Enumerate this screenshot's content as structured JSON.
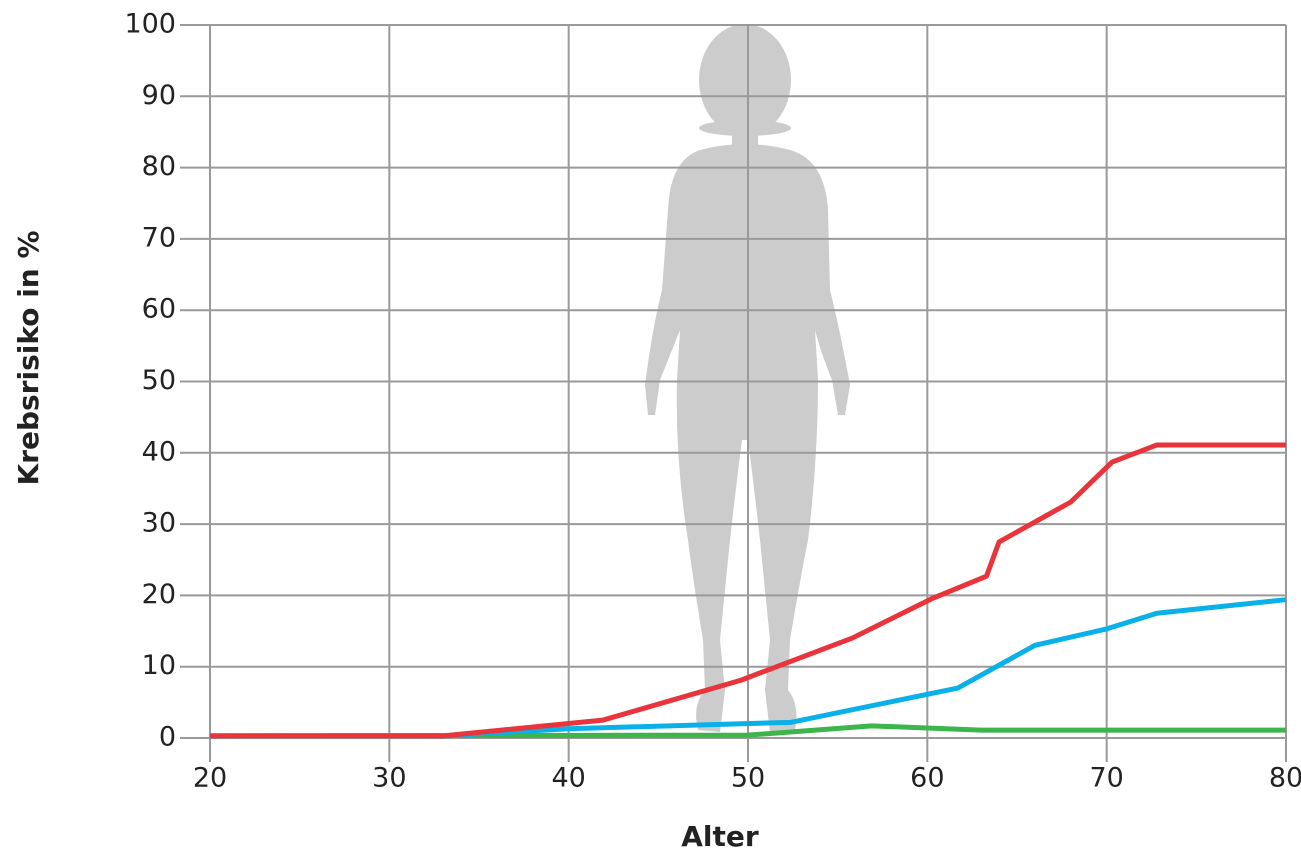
{
  "chart_data": {
    "type": "line",
    "x_label": "Alter",
    "y_label": "Krebsrisiko in %",
    "xlim": [
      20,
      80
    ],
    "xticks": [
      20,
      30,
      40,
      50,
      60,
      70,
      80
    ],
    "ylim": [
      0,
      100
    ],
    "yticks": [
      0,
      10,
      20,
      30,
      40,
      50,
      60,
      70,
      80,
      90,
      100
    ],
    "grid": true,
    "series": [
      {
        "color": "#e8343a",
        "x": [
          20,
          33,
          41.9,
          49.6,
          55.8,
          60.3,
          63.3,
          64,
          68,
          70.3,
          72.8,
          80
        ],
        "values": [
          0.3,
          0.3,
          2.5,
          8.1,
          14,
          19.6,
          22.7,
          27.5,
          33.1,
          38.7,
          41.1,
          41.1
        ]
      },
      {
        "color": "#0ab0e8",
        "x": [
          20,
          33,
          40,
          52.4,
          61.7,
          66,
          70,
          72.8,
          80
        ],
        "values": [
          0.3,
          0.3,
          1.3,
          2.2,
          7,
          13,
          15.3,
          17.5,
          19.4
        ]
      },
      {
        "color": "#3cb54a",
        "x": [
          20,
          50,
          56.9,
          63,
          80
        ],
        "values": [
          0.3,
          0.4,
          1.7,
          1.1,
          1.1
        ]
      }
    ]
  }
}
